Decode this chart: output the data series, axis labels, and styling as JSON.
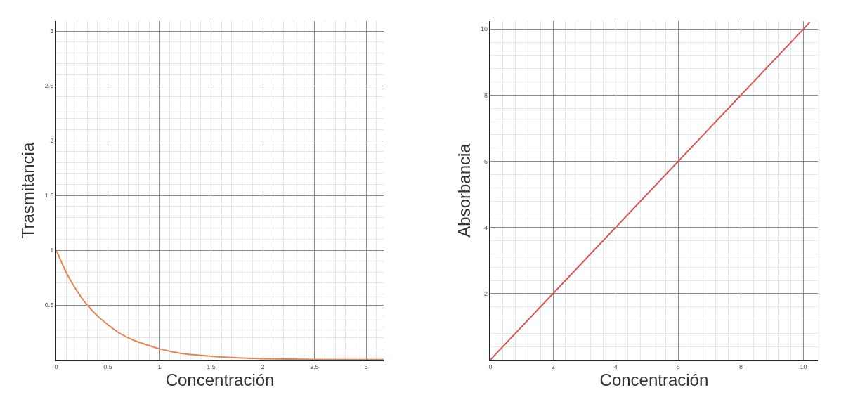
{
  "chart_data": [
    {
      "type": "line",
      "xlabel": "Concentración",
      "ylabel": "Trasmitancia",
      "xlim": [
        0,
        3.17
      ],
      "ylim": [
        0,
        3.09
      ],
      "xticks": [
        0,
        0.5,
        1,
        1.5,
        2,
        2.5,
        3
      ],
      "yticks": [
        0.5,
        1,
        1.5,
        2,
        2.5,
        3
      ],
      "grid": true,
      "series": [
        {
          "color": "#e8834f",
          "x": [
            0,
            0.1,
            0.2,
            0.3,
            0.4,
            0.5,
            0.6,
            0.7,
            0.8,
            0.9,
            1.0,
            1.2,
            1.4,
            1.6,
            1.8,
            2.0,
            2.5,
            3.0,
            3.17
          ],
          "values": [
            1,
            0.79,
            0.63,
            0.5,
            0.4,
            0.32,
            0.25,
            0.2,
            0.16,
            0.13,
            0.1,
            0.06,
            0.04,
            0.025,
            0.016,
            0.01,
            0.003,
            0.001,
            0.001
          ]
        }
      ]
    },
    {
      "type": "line",
      "xlabel": "Concentración",
      "ylabel": "Absorbancia",
      "xlim": [
        0,
        10.46
      ],
      "ylim": [
        0,
        10.24
      ],
      "xticks": [
        0,
        2,
        4,
        6,
        8,
        10
      ],
      "yticks": [
        2,
        4,
        6,
        8,
        10
      ],
      "grid": true,
      "series": [
        {
          "color": "#d9534f",
          "x": [
            0,
            10.2
          ],
          "values": [
            0,
            10.2
          ]
        }
      ]
    }
  ]
}
